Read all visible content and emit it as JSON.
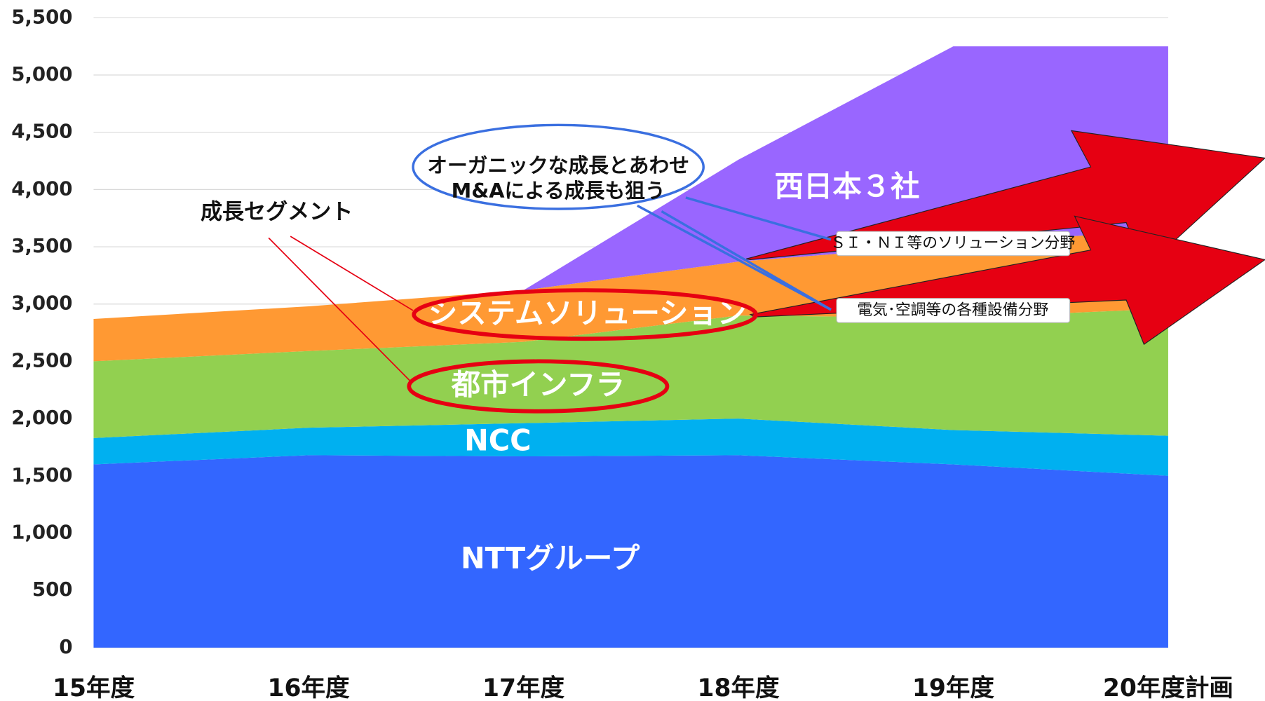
{
  "chart_data": {
    "type": "stacked_area",
    "categories": [
      "15年度",
      "16年度",
      "17年度",
      "18年度",
      "19年度",
      "20年度計画"
    ],
    "series": [
      {
        "name": "NTTグループ",
        "color": "#3366ff",
        "values": [
          1600,
          1680,
          1670,
          1680,
          1600,
          1500
        ]
      },
      {
        "name": "NCC",
        "color": "#00b0f0",
        "values": [
          230,
          240,
          290,
          320,
          300,
          350
        ]
      },
      {
        "name": "都市インフラ",
        "color": "#92d050",
        "values": [
          670,
          670,
          710,
          900,
          980,
          1110
        ]
      },
      {
        "name": "システムソリューション",
        "color": "#ff9933",
        "values": [
          370,
          390,
          450,
          470,
          640,
          690
        ]
      },
      {
        "name": "西日本３社",
        "color": "#9966ff",
        "values": [
          0,
          0,
          0,
          890,
          1730,
          1600
        ]
      }
    ],
    "ylim": [
      0,
      5500
    ],
    "yticks": [
      0,
      500,
      {
        "value": 1000,
        "label": "1,000"
      },
      {
        "value": 1500,
        "label": "1,500"
      },
      {
        "value": 2000,
        "label": "2,000"
      },
      {
        "value": 2500,
        "label": "2,500"
      },
      {
        "value": 3000,
        "label": "3,000"
      },
      {
        "value": 3500,
        "label": "3,500"
      },
      {
        "value": 4000,
        "label": "4,000"
      },
      {
        "value": 4500,
        "label": "4,500"
      },
      {
        "value": 5000,
        "label": "5,000"
      },
      {
        "value": 5500,
        "label": "5,500"
      }
    ],
    "grid": true,
    "annotations": [
      "成長セグメント",
      "オーガニックな成長とあわせ",
      "M&Aによる成長も狙う",
      "ＳＩ・ＮＩ等のソリューション分野",
      "電気･空調等の各種設備分野"
    ]
  }
}
